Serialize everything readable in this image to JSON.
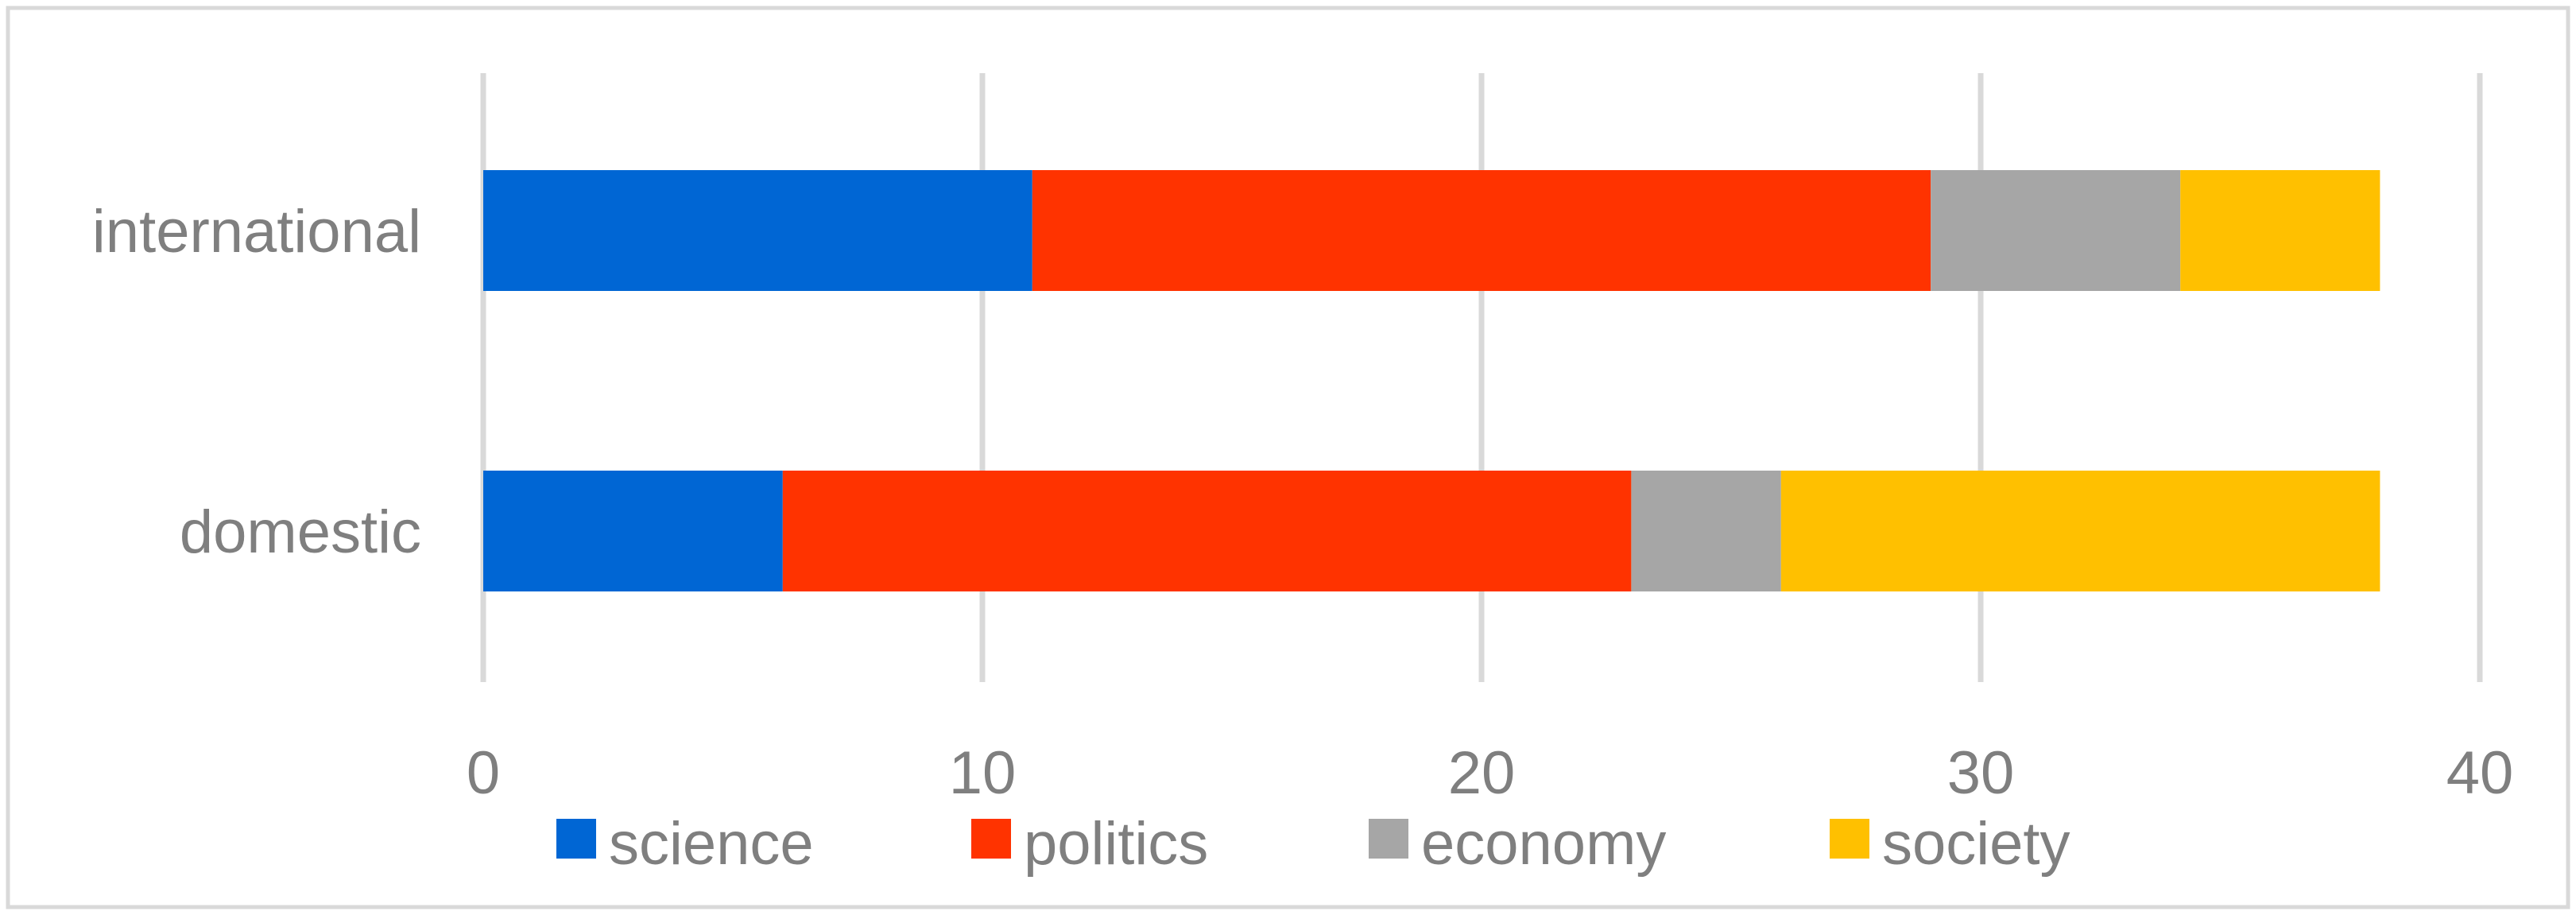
{
  "chart_data": {
    "type": "bar",
    "orientation": "horizontal",
    "stacked": true,
    "title": "",
    "xlabel": "",
    "ylabel": "",
    "categories": [
      "international",
      "domestic"
    ],
    "series": [
      {
        "name": "science",
        "color": "#0066D4",
        "values": [
          11,
          6
        ]
      },
      {
        "name": "politics",
        "color": "#FF3300",
        "values": [
          18,
          17
        ]
      },
      {
        "name": "economy",
        "color": "#A6A6A6",
        "values": [
          5,
          3
        ]
      },
      {
        "name": "society",
        "color": "#FFC000",
        "values": [
          4,
          12
        ]
      }
    ],
    "xlim": [
      0,
      40
    ],
    "xticks": [
      "0",
      "10",
      "20",
      "30",
      "40"
    ],
    "grid": true,
    "legend_position": "bottom",
    "colors": {
      "text": "#7F7F7F",
      "gridline": "#D9D9D9",
      "frame": "#D9D9D9"
    }
  }
}
